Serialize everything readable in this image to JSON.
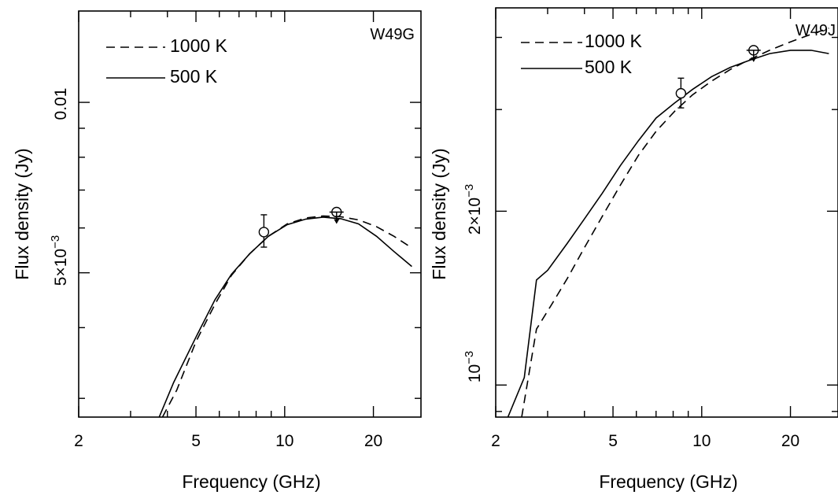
{
  "chart_data": [
    {
      "type": "line",
      "panel_label": "W49G",
      "xlabel": "Frequency (GHz)",
      "ylabel": "Flux density (Jy)",
      "xscale": "log",
      "yscale": "log",
      "xlim": [
        2,
        29
      ],
      "ylim": [
        0.00278,
        0.0145
      ],
      "x_ticklabels": [
        "2",
        "5",
        "10",
        "20"
      ],
      "y_ticklabels": [
        "0.01",
        "5×10"
      ],
      "y_ticklabel_exponents": [
        "",
        "−3"
      ],
      "legend": {
        "position": "top-left",
        "entries": [
          "1000 K",
          "500 K"
        ]
      },
      "series": [
        {
          "name": "1000 K",
          "style": "dashed",
          "x": [
            3.85,
            4.3,
            5.0,
            5.8,
            6.6,
            7.6,
            8.8,
            10.2,
            11.8,
            13.5,
            15.5,
            17.8,
            20.5,
            23.5,
            27.0
          ],
          "y": [
            0.00278,
            0.0031,
            0.00378,
            0.0044,
            0.00495,
            0.0054,
            0.0058,
            0.0061,
            0.00625,
            0.0063,
            0.00628,
            0.0062,
            0.00603,
            0.0058,
            0.00553
          ]
        },
        {
          "name": "500 K",
          "style": "solid",
          "x": [
            3.75,
            4.2,
            5.0,
            5.8,
            6.6,
            7.6,
            8.8,
            10.2,
            11.8,
            13.5,
            15.5,
            17.8,
            20.5,
            23.5,
            27.0
          ],
          "y": [
            0.00278,
            0.0032,
            0.00385,
            0.00448,
            0.00497,
            0.0054,
            0.0058,
            0.00608,
            0.00622,
            0.00627,
            0.00623,
            0.0061,
            0.0058,
            0.00545,
            0.00513
          ]
        }
      ],
      "points": [
        {
          "x": 8.5,
          "y": 0.0059,
          "yerr_low": 0.00555,
          "yerr_high": 0.00633,
          "marker": "circle"
        },
        {
          "x": 15.0,
          "y": 0.0064,
          "marker": "circle-upper-limit"
        }
      ]
    },
    {
      "type": "line",
      "panel_label": "W49J",
      "xlabel": "Frequency (GHz)",
      "ylabel": "Flux density (Jy)",
      "xscale": "log",
      "yscale": "log",
      "xlim": [
        2,
        29
      ],
      "ylim": [
        0.00088,
        0.0045
      ],
      "x_ticklabels": [
        "2",
        "5",
        "10",
        "20"
      ],
      "y_ticklabels": [
        "2×10",
        "10"
      ],
      "y_ticklabel_exponents": [
        "−3",
        "−3"
      ],
      "legend": {
        "position": "top-left",
        "entries": [
          "1000 K",
          "500 K"
        ]
      },
      "series": [
        {
          "name": "1000 K",
          "style": "dashed",
          "x": [
            2.45,
            2.75,
            3.1,
            3.5,
            4.0,
            4.6,
            5.3,
            6.1,
            7.0,
            8.1,
            9.3,
            10.8,
            12.5,
            14.5,
            17.0,
            20.0,
            23.5,
            27.0
          ],
          "y": [
            0.00088,
            0.00125,
            0.00138,
            0.00153,
            0.00173,
            0.00196,
            0.00222,
            0.0025,
            0.00275,
            0.00298,
            0.00318,
            0.00336,
            0.00352,
            0.00366,
            0.0038,
            0.00393,
            0.00405,
            0.00415
          ]
        },
        {
          "name": "500 K",
          "style": "solid",
          "x": [
            2.2,
            2.5,
            2.75,
            3.0,
            3.5,
            4.0,
            4.6,
            5.3,
            6.1,
            7.0,
            8.1,
            9.3,
            10.8,
            12.5,
            14.5,
            17.0,
            20.0,
            23.5,
            27.0
          ],
          "y": [
            0.00088,
            0.00103,
            0.00152,
            0.00158,
            0.00176,
            0.00194,
            0.00215,
            0.0024,
            0.00265,
            0.0029,
            0.00308,
            0.00325,
            0.00342,
            0.00355,
            0.00365,
            0.00375,
            0.0038,
            0.0038,
            0.00375
          ]
        }
      ],
      "points": [
        {
          "x": 8.5,
          "y": 0.0032,
          "yerr_low": 0.00302,
          "yerr_high": 0.0034,
          "marker": "circle"
        },
        {
          "x": 15.0,
          "y": 0.0038,
          "marker": "circle-upper-limit"
        }
      ]
    }
  ]
}
